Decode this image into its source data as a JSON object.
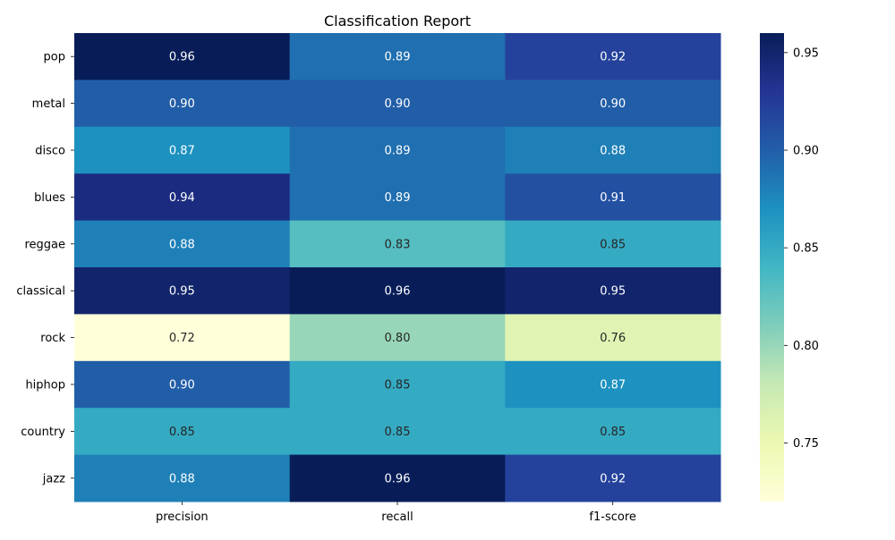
{
  "chart_data": {
    "type": "heatmap",
    "title": "Classification Report",
    "rows": [
      "pop",
      "metal",
      "disco",
      "blues",
      "reggae",
      "classical",
      "rock",
      "hiphop",
      "country",
      "jazz"
    ],
    "columns": [
      "precision",
      "recall",
      "f1-score"
    ],
    "values": [
      [
        0.96,
        0.89,
        0.92
      ],
      [
        0.9,
        0.9,
        0.9
      ],
      [
        0.87,
        0.89,
        0.88
      ],
      [
        0.94,
        0.89,
        0.91
      ],
      [
        0.88,
        0.83,
        0.85
      ],
      [
        0.95,
        0.96,
        0.95
      ],
      [
        0.72,
        0.8,
        0.76
      ],
      [
        0.9,
        0.85,
        0.87
      ],
      [
        0.85,
        0.85,
        0.85
      ],
      [
        0.88,
        0.96,
        0.92
      ]
    ],
    "value_labels": [
      [
        "0.96",
        "0.89",
        "0.92"
      ],
      [
        "0.90",
        "0.90",
        "0.90"
      ],
      [
        "0.87",
        "0.89",
        "0.88"
      ],
      [
        "0.94",
        "0.89",
        "0.91"
      ],
      [
        "0.88",
        "0.83",
        "0.85"
      ],
      [
        "0.95",
        "0.96",
        "0.95"
      ],
      [
        "0.72",
        "0.80",
        "0.76"
      ],
      [
        "0.90",
        "0.85",
        "0.87"
      ],
      [
        "0.85",
        "0.85",
        "0.85"
      ],
      [
        "0.88",
        "0.96",
        "0.92"
      ]
    ],
    "colormap": "YlGnBu",
    "colorbar_range": [
      0.72,
      0.96
    ],
    "colorbar_ticks": [
      0.75,
      0.8,
      0.85,
      0.9,
      0.95
    ],
    "colorbar_tick_labels": [
      "0.75",
      "0.80",
      "0.85",
      "0.90",
      "0.95"
    ],
    "colorbar_stops": [
      "#ffffd9",
      "#edf8b1",
      "#c7e9b4",
      "#7fcdbb",
      "#41b6c4",
      "#1d91c0",
      "#225ea8",
      "#253494",
      "#081d58"
    ]
  }
}
